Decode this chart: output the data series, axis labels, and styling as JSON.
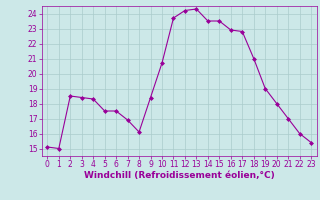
{
  "x": [
    0,
    1,
    2,
    3,
    4,
    5,
    6,
    7,
    8,
    9,
    10,
    11,
    12,
    13,
    14,
    15,
    16,
    17,
    18,
    19,
    20,
    21,
    22,
    23
  ],
  "y": [
    15.1,
    15.0,
    18.5,
    18.4,
    18.3,
    17.5,
    17.5,
    16.9,
    16.1,
    18.4,
    20.7,
    23.7,
    24.2,
    24.3,
    23.5,
    23.5,
    22.9,
    22.8,
    21.0,
    19.0,
    18.0,
    17.0,
    16.0,
    15.4
  ],
  "line_color": "#990099",
  "marker": "D",
  "marker_size": 2,
  "bg_color": "#cce8e8",
  "grid_color": "#aacccc",
  "xlabel": "Windchill (Refroidissement éolien,°C)",
  "xlabel_color": "#990099",
  "ylim": [
    14.5,
    24.5
  ],
  "xlim": [
    -0.5,
    23.5
  ],
  "yticks": [
    15,
    16,
    17,
    18,
    19,
    20,
    21,
    22,
    23,
    24
  ],
  "xticks": [
    0,
    1,
    2,
    3,
    4,
    5,
    6,
    7,
    8,
    9,
    10,
    11,
    12,
    13,
    14,
    15,
    16,
    17,
    18,
    19,
    20,
    21,
    22,
    23
  ],
  "tick_color": "#990099",
  "tick_labelsize": 5.5,
  "xlabel_fontsize": 6.5
}
